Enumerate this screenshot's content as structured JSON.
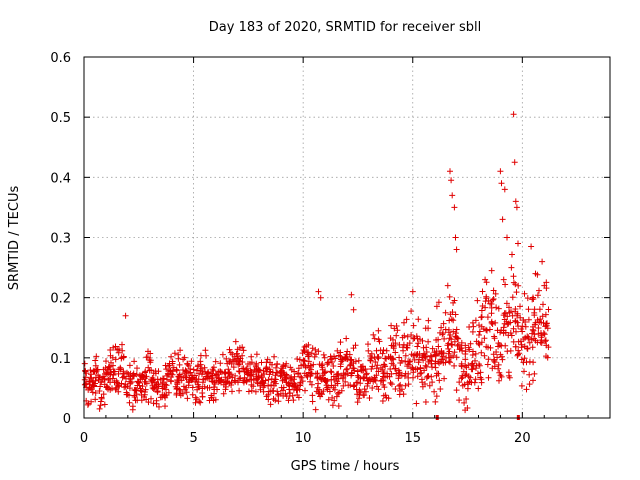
{
  "chart_data": {
    "type": "scatter",
    "title": "Day 183 of 2020, SRMTID for receiver sbll",
    "xlabel": "GPS time / hours",
    "ylabel": "SRMTID / TECUs",
    "xlim": [
      0,
      24
    ],
    "ylim": [
      0,
      0.6
    ],
    "xticks": [
      "0",
      "5",
      "10",
      "15",
      "20"
    ],
    "yticks": [
      "0",
      "0.1",
      "0.2",
      "0.3",
      "0.4",
      "0.5",
      "0.6"
    ],
    "grid": true,
    "marker": "+",
    "color": "#e00000",
    "series": [
      {
        "name": "SRMTID",
        "x": [
          0.0,
          0.2,
          0.4,
          0.6,
          0.8,
          1.0,
          1.2,
          1.4,
          1.6,
          1.8,
          2.0,
          2.2,
          2.4,
          2.6,
          2.8,
          3.0,
          3.2,
          3.4,
          3.6,
          3.8,
          4.0,
          4.2,
          4.4,
          4.6,
          4.8,
          5.0,
          5.2,
          5.4,
          5.6,
          5.8,
          6.0,
          6.2,
          6.4,
          6.6,
          6.8,
          7.0,
          7.2,
          7.4,
          7.6,
          7.8,
          8.0,
          8.2,
          8.4,
          8.6,
          8.8,
          9.0,
          9.2,
          9.4,
          9.6,
          9.8,
          10.0,
          10.2,
          10.4,
          10.6,
          10.8,
          11.0,
          11.2,
          11.4,
          11.6,
          11.8,
          12.0,
          12.2,
          12.4,
          12.6,
          12.8,
          13.0,
          13.2,
          13.4,
          13.6,
          13.8,
          14.0,
          14.2,
          14.4,
          14.6,
          14.8,
          15.0,
          15.2,
          15.4,
          15.6,
          15.8,
          16.0,
          16.2,
          16.4,
          16.6,
          16.8,
          17.0,
          17.2,
          17.4,
          17.6,
          17.8,
          18.0,
          18.2,
          18.4,
          18.6,
          18.8,
          19.0,
          19.2,
          19.4,
          19.6,
          19.8,
          20.0,
          20.2,
          20.4,
          20.6,
          20.8,
          21.0,
          21.2
        ],
        "values": [
          0.065,
          0.06,
          0.055,
          0.07,
          0.05,
          0.06,
          0.075,
          0.08,
          0.07,
          0.09,
          0.06,
          0.05,
          0.045,
          0.055,
          0.06,
          0.07,
          0.065,
          0.05,
          0.055,
          0.06,
          0.07,
          0.065,
          0.075,
          0.06,
          0.07,
          0.065,
          0.06,
          0.07,
          0.075,
          0.06,
          0.065,
          0.07,
          0.06,
          0.08,
          0.075,
          0.09,
          0.085,
          0.07,
          0.065,
          0.07,
          0.075,
          0.06,
          0.07,
          0.065,
          0.06,
          0.07,
          0.065,
          0.055,
          0.06,
          0.075,
          0.08,
          0.09,
          0.085,
          0.07,
          0.06,
          0.065,
          0.07,
          0.06,
          0.07,
          0.075,
          0.08,
          0.085,
          0.07,
          0.065,
          0.075,
          0.08,
          0.085,
          0.09,
          0.075,
          0.085,
          0.095,
          0.1,
          0.09,
          0.1,
          0.11,
          0.12,
          0.1,
          0.085,
          0.09,
          0.1,
          0.095,
          0.11,
          0.1,
          0.125,
          0.14,
          0.13,
          0.09,
          0.075,
          0.08,
          0.1,
          0.12,
          0.135,
          0.15,
          0.17,
          0.14,
          0.12,
          0.16,
          0.15,
          0.17,
          0.13,
          0.12,
          0.13,
          0.14,
          0.155,
          0.17,
          0.165,
          0.14
        ],
        "spread": [
          0.03,
          0.03,
          0.03,
          0.03,
          0.03,
          0.03,
          0.03,
          0.035,
          0.035,
          0.035,
          0.03,
          0.03,
          0.025,
          0.03,
          0.035,
          0.035,
          0.035,
          0.03,
          0.03,
          0.03,
          0.03,
          0.03,
          0.035,
          0.035,
          0.03,
          0.03,
          0.03,
          0.03,
          0.03,
          0.03,
          0.03,
          0.03,
          0.03,
          0.035,
          0.035,
          0.04,
          0.035,
          0.03,
          0.03,
          0.03,
          0.03,
          0.03,
          0.03,
          0.03,
          0.03,
          0.03,
          0.03,
          0.03,
          0.03,
          0.035,
          0.04,
          0.045,
          0.045,
          0.04,
          0.035,
          0.035,
          0.035,
          0.035,
          0.035,
          0.035,
          0.035,
          0.04,
          0.035,
          0.035,
          0.035,
          0.035,
          0.04,
          0.04,
          0.035,
          0.04,
          0.045,
          0.05,
          0.045,
          0.05,
          0.05,
          0.055,
          0.05,
          0.045,
          0.05,
          0.05,
          0.05,
          0.055,
          0.05,
          0.06,
          0.065,
          0.06,
          0.05,
          0.045,
          0.05,
          0.055,
          0.06,
          0.07,
          0.07,
          0.07,
          0.07,
          0.06,
          0.07,
          0.07,
          0.07,
          0.065,
          0.06,
          0.06,
          0.06,
          0.06,
          0.055,
          0.05,
          0.045
        ],
        "outliers": [
          [
            1.9,
            0.17
          ],
          [
            10.7,
            0.21
          ],
          [
            10.8,
            0.2
          ],
          [
            12.2,
            0.205
          ],
          [
            12.3,
            0.18
          ],
          [
            15.0,
            0.21
          ],
          [
            16.7,
            0.41
          ],
          [
            16.75,
            0.395
          ],
          [
            16.8,
            0.37
          ],
          [
            16.9,
            0.35
          ],
          [
            16.95,
            0.3
          ],
          [
            17.0,
            0.28
          ],
          [
            16.6,
            0.22
          ],
          [
            16.5,
            0.175
          ],
          [
            19.0,
            0.41
          ],
          [
            19.05,
            0.39
          ],
          [
            19.1,
            0.33
          ],
          [
            19.2,
            0.38
          ],
          [
            19.3,
            0.3
          ],
          [
            19.6,
            0.505
          ],
          [
            19.65,
            0.425
          ],
          [
            19.7,
            0.36
          ],
          [
            19.75,
            0.35
          ],
          [
            19.8,
            0.29
          ],
          [
            19.5,
            0.25
          ],
          [
            18.6,
            0.245
          ],
          [
            20.4,
            0.285
          ],
          [
            20.6,
            0.24
          ],
          [
            20.9,
            0.26
          ],
          [
            21.0,
            0.22
          ]
        ]
      }
    ],
    "data_gaps": [
      {
        "from": 16.05,
        "to": 16.15
      },
      {
        "from": 19.75,
        "to": 19.85
      }
    ]
  }
}
